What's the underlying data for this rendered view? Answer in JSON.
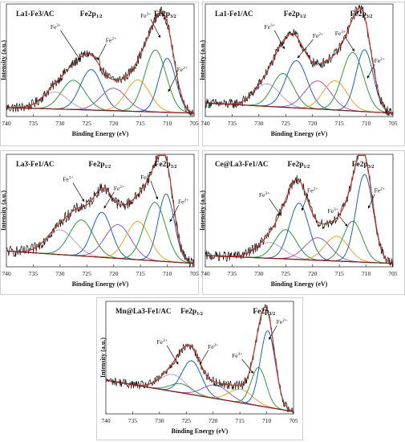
{
  "chart_data": [
    {
      "type": "line",
      "title": "La1-Fe3/AC",
      "xlabel": "Binding Energy (eV)",
      "ylabel": "Intensity (a.u.)",
      "xlim": [
        740,
        705
      ],
      "x_ticks": [
        "740",
        "735",
        "730",
        "725",
        "720",
        "715",
        "710",
        "705"
      ],
      "peaks": [
        {
          "main": "Fe2p",
          "sub": "1/2",
          "x": 724.2
        },
        {
          "main": "Fe2p",
          "sub": "3/2",
          "x": 710.4
        }
      ],
      "annotations": [
        {
          "text": "Fe",
          "sup": "3+",
          "tx": 730.8,
          "ty": 0.78,
          "ax": 726.2,
          "ay": 0.5
        },
        {
          "text": "Fe",
          "sup": "2+",
          "tx": 720.5,
          "ty": 0.66,
          "ax": 723.0,
          "ay": 0.5
        },
        {
          "text": "Fe",
          "sup": "3+",
          "tx": 714.0,
          "ty": 0.88,
          "ax": 711.3,
          "ay": 0.7
        },
        {
          "text": "Fe",
          "sup": "2+",
          "tx": 707.2,
          "ty": 0.4,
          "ax": 709.8,
          "ay": 0.22
        }
      ],
      "background": {
        "start": 0.08,
        "end": 0.03
      },
      "components": [
        {
          "center": 731.0,
          "height": 0.15,
          "width": 2.4,
          "color": "#b89be0"
        },
        {
          "center": 727.5,
          "height": 0.26,
          "width": 2.2,
          "color": "#2f9a3a"
        },
        {
          "center": 724.2,
          "height": 0.36,
          "width": 2.0,
          "color": "#1f62b3"
        },
        {
          "center": 720.0,
          "height": 0.2,
          "width": 2.4,
          "color": "#9b59b6"
        },
        {
          "center": 715.5,
          "height": 0.28,
          "width": 2.2,
          "color": "#f0a030"
        },
        {
          "center": 712.2,
          "height": 0.55,
          "width": 2.0,
          "color": "#2f9a3a"
        },
        {
          "center": 710.0,
          "height": 0.48,
          "width": 1.6,
          "color": "#1f62b3"
        }
      ],
      "noise": 0.045
    },
    {
      "type": "line",
      "title": "La1-Fe1/AC",
      "xlabel": "Binding Energy (eV)",
      "ylabel": "Intensity (a.u.)",
      "xlim": [
        740,
        705
      ],
      "x_ticks": [
        "740",
        "735",
        "730",
        "725",
        "720",
        "715",
        "710",
        "705"
      ],
      "peaks": [
        {
          "main": "Fe2p",
          "sub": "1/2",
          "x": 723.3
        },
        {
          "main": "Fe2p",
          "sub": "3/2",
          "x": 710.9
        }
      ],
      "annotations": [
        {
          "text": "Fe",
          "sup": "3+",
          "tx": 728.0,
          "ty": 0.78,
          "ax": 725.2,
          "ay": 0.6
        },
        {
          "text": "Fe",
          "sup": "2+",
          "tx": 719.0,
          "ty": 0.7,
          "ax": 722.8,
          "ay": 0.52
        },
        {
          "text": "Fe",
          "sup": "3+",
          "tx": 714.8,
          "ty": 0.72,
          "ax": 712.2,
          "ay": 0.58
        },
        {
          "text": "Fe",
          "sup": "2+",
          "tx": 707.5,
          "ty": 0.48,
          "ax": 709.8,
          "ay": 0.34
        }
      ],
      "background": {
        "start": 0.12,
        "end": 0.03
      },
      "components": [
        {
          "center": 728.5,
          "height": 0.2,
          "width": 2.4,
          "color": "#b89be0"
        },
        {
          "center": 725.5,
          "height": 0.3,
          "width": 2.0,
          "color": "#2f9a3a"
        },
        {
          "center": 723.0,
          "height": 0.42,
          "width": 2.0,
          "color": "#1f62b3"
        },
        {
          "center": 719.0,
          "height": 0.25,
          "width": 2.4,
          "color": "#9b59b6"
        },
        {
          "center": 715.8,
          "height": 0.26,
          "width": 2.2,
          "color": "#f0a030"
        },
        {
          "center": 712.5,
          "height": 0.52,
          "width": 2.0,
          "color": "#2f9a3a"
        },
        {
          "center": 710.3,
          "height": 0.55,
          "width": 1.6,
          "color": "#1f62b3"
        }
      ],
      "noise": 0.045
    },
    {
      "type": "line",
      "title": "La3-Fe1/AC",
      "xlabel": "Binding Energy (eV)",
      "ylabel": "Intensity (a.u.)",
      "xlim": [
        740,
        705
      ],
      "x_ticks": [
        "740",
        "735",
        "730",
        "725",
        "720",
        "715",
        "710",
        "705"
      ],
      "peaks": [
        {
          "main": "Fe2p",
          "sub": "1/2",
          "x": 722.6
        },
        {
          "main": "Fe2p",
          "sub": "3/2",
          "x": 710.3
        }
      ],
      "annotations": [
        {
          "text": "Fe",
          "sup": "3+",
          "tx": 728.5,
          "ty": 0.76,
          "ax": 725.5,
          "ay": 0.58
        },
        {
          "text": "Fe",
          "sup": "2+",
          "tx": 719.0,
          "ty": 0.68,
          "ax": 721.8,
          "ay": 0.52
        },
        {
          "text": "Fe",
          "sup": "3+",
          "tx": 714.0,
          "ty": 0.78,
          "ax": 711.8,
          "ay": 0.6
        },
        {
          "text": "Fe",
          "sup": "2+",
          "tx": 707.0,
          "ty": 0.56,
          "ax": 709.5,
          "ay": 0.4
        }
      ],
      "background": {
        "start": 0.14,
        "end": 0.03
      },
      "components": [
        {
          "center": 730.0,
          "height": 0.22,
          "width": 2.6,
          "color": "#b89be0"
        },
        {
          "center": 726.0,
          "height": 0.32,
          "width": 2.2,
          "color": "#2f9a3a"
        },
        {
          "center": 722.2,
          "height": 0.4,
          "width": 1.8,
          "color": "#1f62b3"
        },
        {
          "center": 719.2,
          "height": 0.3,
          "width": 2.4,
          "color": "#9b59b6"
        },
        {
          "center": 715.5,
          "height": 0.34,
          "width": 2.2,
          "color": "#f0a030"
        },
        {
          "center": 712.3,
          "height": 0.52,
          "width": 2.0,
          "color": "#2f9a3a"
        },
        {
          "center": 710.2,
          "height": 0.6,
          "width": 1.5,
          "color": "#1f62b3"
        }
      ],
      "noise": 0.05
    },
    {
      "type": "line",
      "title": "Ce@La3-Fe1/AC",
      "xlabel": "Binding Energy (eV)",
      "ylabel": "Intensity (a.u.)",
      "xlim": [
        740,
        705
      ],
      "x_ticks": [
        "740",
        "735",
        "730",
        "725",
        "720",
        "715",
        "710",
        "705"
      ],
      "peaks": [
        {
          "main": "Fe2p",
          "sub": "1/2",
          "x": 722.6
        },
        {
          "main": "Fe2p",
          "sub": "3/2",
          "x": 710.6
        }
      ],
      "annotations": [
        {
          "text": "Fe",
          "sup": "3+",
          "tx": 729.0,
          "ty": 0.62,
          "ax": 726.0,
          "ay": 0.46
        },
        {
          "text": "Fe",
          "sup": "2+",
          "tx": 720.0,
          "ty": 0.66,
          "ax": 722.0,
          "ay": 0.5
        },
        {
          "text": "Fe",
          "sup": "3+",
          "tx": 716.2,
          "ty": 0.48,
          "ax": 713.5,
          "ay": 0.36
        },
        {
          "text": "Fe",
          "sup": "2+",
          "tx": 707.5,
          "ty": 0.66,
          "ax": 709.6,
          "ay": 0.52
        }
      ],
      "background": {
        "start": 0.1,
        "end": 0.03
      },
      "components": [
        {
          "center": 728.0,
          "height": 0.14,
          "width": 2.6,
          "color": "#b89be0"
        },
        {
          "center": 725.0,
          "height": 0.26,
          "width": 2.0,
          "color": "#2f9a3a"
        },
        {
          "center": 722.5,
          "height": 0.5,
          "width": 1.8,
          "color": "#1f62b3"
        },
        {
          "center": 719.0,
          "height": 0.2,
          "width": 2.4,
          "color": "#9b59b6"
        },
        {
          "center": 715.5,
          "height": 0.22,
          "width": 2.2,
          "color": "#f0a030"
        },
        {
          "center": 712.5,
          "height": 0.36,
          "width": 1.8,
          "color": "#2f9a3a"
        },
        {
          "center": 710.3,
          "height": 0.78,
          "width": 1.6,
          "color": "#1f62b3"
        }
      ],
      "noise": 0.045
    },
    {
      "type": "line",
      "title": "Mn@La3-Fe1/AC",
      "xlabel": "Binding Energy (eV)",
      "ylabel": "Intensity (a.u.)",
      "xlim": [
        740,
        705
      ],
      "x_ticks": [
        "740",
        "735",
        "730",
        "725",
        "720",
        "715",
        "710",
        "705"
      ],
      "peaks": [
        {
          "main": "Fe2p",
          "sub": "1/2",
          "x": 724.0
        },
        {
          "main": "Fe2p",
          "sub": "3/2",
          "x": 710.5
        }
      ],
      "annotations": [
        {
          "text": "Fe",
          "sup": "3+",
          "tx": 729.5,
          "ty": 0.62,
          "ax": 726.5,
          "ay": 0.44
        },
        {
          "text": "Fe",
          "sup": "2+",
          "tx": 720.0,
          "ty": 0.58,
          "ax": 722.5,
          "ay": 0.44
        },
        {
          "text": "Fe",
          "sup": "3+",
          "tx": 715.5,
          "ty": 0.5,
          "ax": 712.5,
          "ay": 0.36
        },
        {
          "text": "Fe",
          "sup": "2+",
          "tx": 707.2,
          "ty": 0.8,
          "ax": 709.6,
          "ay": 0.66
        }
      ],
      "background": {
        "start": 0.3,
        "end": 0.02
      },
      "components": [
        {
          "center": 727.5,
          "height": 0.15,
          "width": 2.4,
          "color": "#b89be0"
        },
        {
          "center": 726.0,
          "height": 0.08,
          "width": 2.0,
          "color": "#2f9a3a"
        },
        {
          "center": 724.0,
          "height": 0.3,
          "width": 1.8,
          "color": "#1f62b3"
        },
        {
          "center": 719.5,
          "height": 0.12,
          "width": 2.4,
          "color": "#9b59b6"
        },
        {
          "center": 714.8,
          "height": 0.12,
          "width": 2.2,
          "color": "#f0a030"
        },
        {
          "center": 711.5,
          "height": 0.34,
          "width": 1.4,
          "color": "#2f9a3a"
        },
        {
          "center": 709.8,
          "height": 0.68,
          "width": 1.4,
          "color": "#1f62b3"
        }
      ],
      "noise": 0.04
    }
  ]
}
